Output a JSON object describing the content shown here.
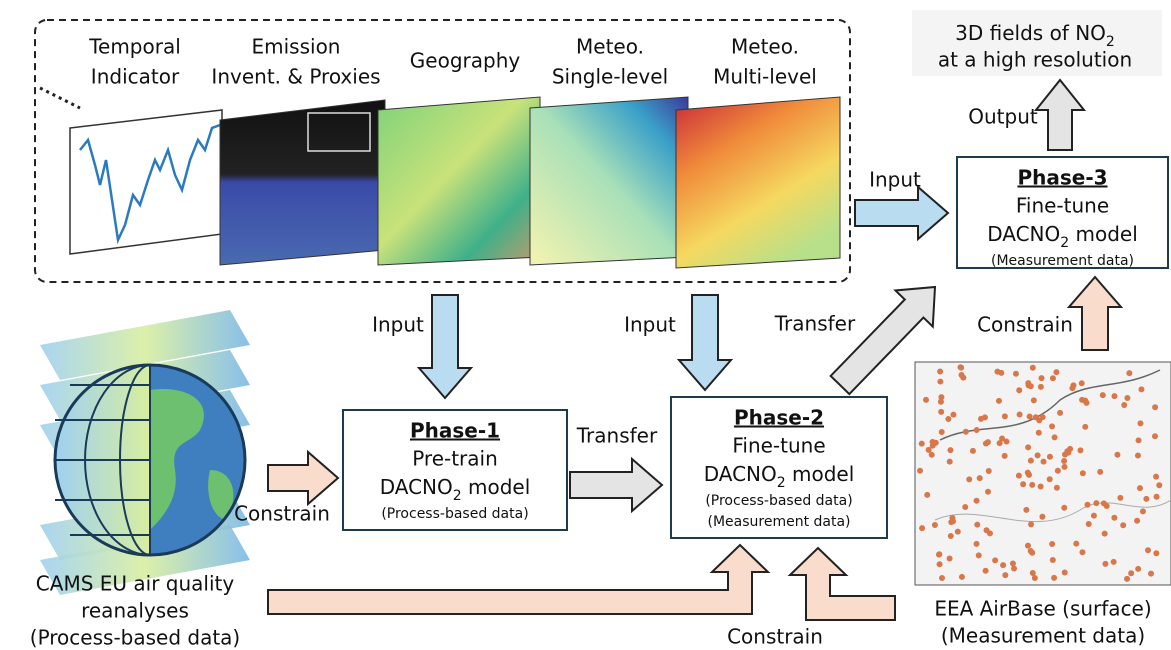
{
  "inputs": [
    {
      "lines": [
        "Temporal",
        "Indicator"
      ]
    },
    {
      "lines": [
        "Emission",
        "Invent. & Proxies"
      ]
    },
    {
      "lines": [
        "Geography"
      ]
    },
    {
      "lines": [
        "Meteo.",
        "Single-level"
      ]
    },
    {
      "lines": [
        "Meteo.",
        "Multi-level"
      ]
    }
  ],
  "output": {
    "lines": [
      {
        "text": "3D fields of NO",
        "sub": "2"
      },
      "at a high resolution"
    ],
    "label": "Output"
  },
  "phases": [
    {
      "title": "Phase-1",
      "lines": [
        "Pre-train",
        {
          "text": "DACNO",
          "sub": "2",
          "after": " model"
        },
        "(Process-based data)"
      ]
    },
    {
      "title": "Phase-2",
      "lines": [
        "Fine-tune",
        {
          "text": "DACNO",
          "sub": "2",
          "after": " model"
        },
        "(Process-based data)",
        "(Measurement data)"
      ]
    },
    {
      "title": "Phase-3",
      "lines": [
        "Fine-tune",
        {
          "text": "DACNO",
          "sub": "2",
          "after": " model"
        },
        "(Measurement data)"
      ]
    }
  ],
  "arrows": {
    "input_phase3": "Input",
    "input_phase1": "Input",
    "input_phase2": "Input",
    "transfer_1_2": "Transfer",
    "transfer_2_3": "Transfer",
    "constrain_cams": "Constrain",
    "constrain_eea_phase3": "Constrain",
    "constrain_bottom": "Constrain"
  },
  "sources": {
    "cams": [
      "CAMS EU air quality",
      "reanalyses",
      "(Process-based data)"
    ],
    "eea": [
      "EEA AirBase (surface)",
      "(Measurement data)"
    ]
  }
}
